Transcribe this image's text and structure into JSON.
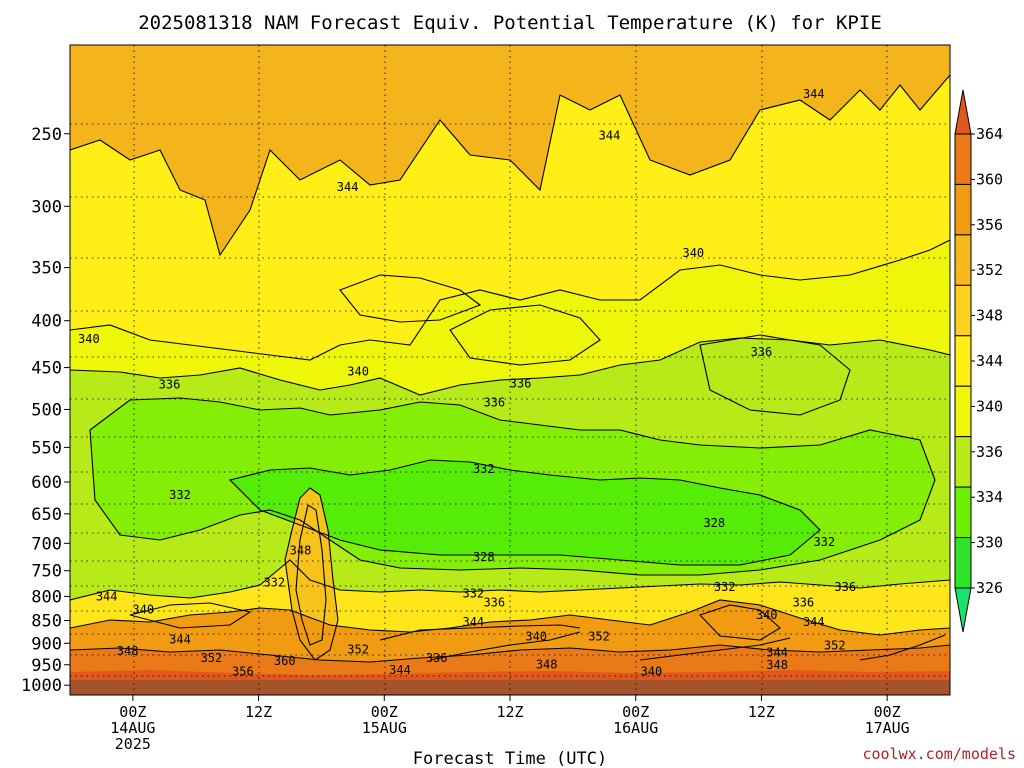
{
  "chart_data": {
    "type": "heatmap",
    "title": "2025081318 NAM Forecast Equiv. Potential Temperature (K) for KPIE",
    "xlabel": "Forecast Time (UTC)",
    "ylabel": "",
    "x_ticks": [
      {
        "hour": 6,
        "lines": [
          "00Z",
          "14AUG",
          "2025"
        ]
      },
      {
        "hour": 18,
        "lines": [
          "12Z"
        ]
      },
      {
        "hour": 30,
        "lines": [
          "00Z",
          "15AUG"
        ]
      },
      {
        "hour": 42,
        "lines": [
          "12Z"
        ]
      },
      {
        "hour": 54,
        "lines": [
          "00Z",
          "16AUG"
        ]
      },
      {
        "hour": 66,
        "lines": [
          "12Z"
        ]
      },
      {
        "hour": 78,
        "lines": [
          "00Z",
          "17AUG"
        ]
      }
    ],
    "x_range_hours": [
      0,
      84
    ],
    "y_ticks_hpa": [
      250,
      300,
      350,
      400,
      450,
      500,
      550,
      600,
      650,
      700,
      750,
      800,
      850,
      900,
      950,
      1000
    ],
    "y_range_hpa": [
      200,
      1025
    ],
    "y_scale": "log-pressure",
    "colorbar": {
      "labels": [
        "364",
        "360",
        "356",
        "352",
        "348",
        "344",
        "340",
        "336",
        "334",
        "330",
        "326"
      ],
      "colors": [
        "#e2581c",
        "#ea7a17",
        "#f09b12",
        "#f6b81b",
        "#fcd21f",
        "#ffef17",
        "#eef709",
        "#b6ea19",
        "#6cef03",
        "#2fe428",
        "#17e46e"
      ]
    },
    "contour_labels": [
      {
        "text": "344",
        "hour": 26.5,
        "hpa": 288
      },
      {
        "text": "344",
        "hour": 51.5,
        "hpa": 253
      },
      {
        "text": "344",
        "hour": 71.0,
        "hpa": 228
      },
      {
        "text": "340",
        "hour": 1.8,
        "hpa": 422
      },
      {
        "text": "340",
        "hour": 27.5,
        "hpa": 458
      },
      {
        "text": "340",
        "hour": 59.5,
        "hpa": 340
      },
      {
        "text": "336",
        "hour": 9.5,
        "hpa": 473
      },
      {
        "text": "336",
        "hour": 43.0,
        "hpa": 472
      },
      {
        "text": "336",
        "hour": 40.5,
        "hpa": 495
      },
      {
        "text": "336",
        "hour": 66.0,
        "hpa": 436
      },
      {
        "text": "332",
        "hour": 10.5,
        "hpa": 625
      },
      {
        "text": "332",
        "hour": 39.5,
        "hpa": 585
      },
      {
        "text": "332",
        "hour": 19.5,
        "hpa": 778
      },
      {
        "text": "332",
        "hour": 38.5,
        "hpa": 800
      },
      {
        "text": "332",
        "hour": 62.5,
        "hpa": 787
      },
      {
        "text": "332",
        "hour": 72.0,
        "hpa": 703
      },
      {
        "text": "328",
        "hour": 39.5,
        "hpa": 730
      },
      {
        "text": "328",
        "hour": 61.5,
        "hpa": 670
      },
      {
        "text": "348",
        "hour": 22.0,
        "hpa": 718
      },
      {
        "text": "344",
        "hour": 3.5,
        "hpa": 806
      },
      {
        "text": "340",
        "hour": 7.0,
        "hpa": 833
      },
      {
        "text": "344",
        "hour": 10.5,
        "hpa": 898
      },
      {
        "text": "348",
        "hour": 5.5,
        "hpa": 925
      },
      {
        "text": "352",
        "hour": 13.5,
        "hpa": 941
      },
      {
        "text": "356",
        "hour": 16.5,
        "hpa": 973
      },
      {
        "text": "360",
        "hour": 20.5,
        "hpa": 948
      },
      {
        "text": "352",
        "hour": 27.5,
        "hpa": 921
      },
      {
        "text": "336",
        "hour": 40.5,
        "hpa": 818
      },
      {
        "text": "344",
        "hour": 38.5,
        "hpa": 860
      },
      {
        "text": "340",
        "hour": 44.5,
        "hpa": 891
      },
      {
        "text": "352",
        "hour": 50.5,
        "hpa": 891
      },
      {
        "text": "336",
        "hour": 35.0,
        "hpa": 941
      },
      {
        "text": "344",
        "hour": 31.5,
        "hpa": 970
      },
      {
        "text": "348",
        "hour": 45.5,
        "hpa": 956
      },
      {
        "text": "340",
        "hour": 55.5,
        "hpa": 973
      },
      {
        "text": "336",
        "hour": 70.0,
        "hpa": 818
      },
      {
        "text": "340",
        "hour": 66.5,
        "hpa": 845
      },
      {
        "text": "344",
        "hour": 71.0,
        "hpa": 860
      },
      {
        "text": "352",
        "hour": 73.0,
        "hpa": 912
      },
      {
        "text": "344",
        "hour": 67.5,
        "hpa": 928
      },
      {
        "text": "348",
        "hour": 67.5,
        "hpa": 958
      },
      {
        "text": "336",
        "hour": 74.0,
        "hpa": 787
      }
    ]
  },
  "credit": "coolwx.com/models"
}
